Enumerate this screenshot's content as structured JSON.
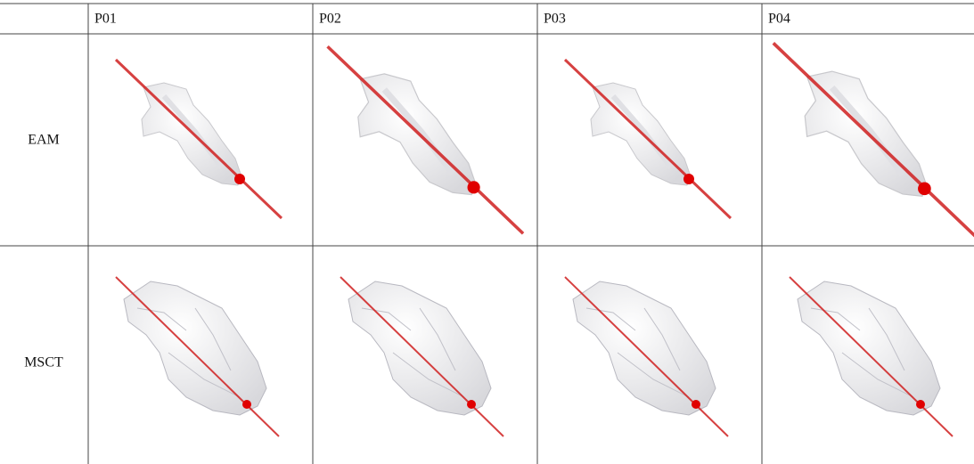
{
  "columns": [
    "P01",
    "P02",
    "P03",
    "P04"
  ],
  "rows": [
    "EAM",
    "MSCT"
  ]
}
